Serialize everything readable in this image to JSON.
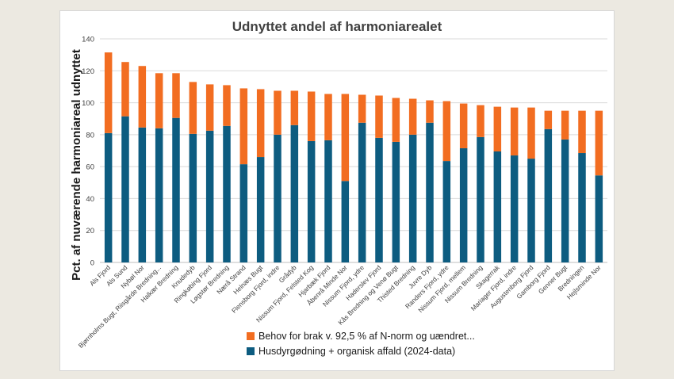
{
  "colors": {
    "top": "#f26d21",
    "bottom": "#0d5c80",
    "grid": "#d9d9d9",
    "axis": "#bfbfbf"
  },
  "chart_data": {
    "type": "bar",
    "stacked": true,
    "title": "Udnyttet andel af harmoniarealet",
    "ylabel": "Pct. af nuværende harmoniareal udnyttet",
    "xlabel": "",
    "ylim": [
      0,
      140
    ],
    "yticks": [
      0,
      20,
      40,
      60,
      80,
      100,
      120,
      140
    ],
    "grid": true,
    "legend_position": "bottom",
    "categories": [
      "Als Fjord",
      "Als Sund",
      "Nybøl Nor",
      "Bjørnholms Bugt, Riisgårde Bredning...",
      "Halkær Bredning",
      "Knudedyb",
      "Ringkøbing Fjord",
      "Løgstør Bredning",
      "Nærå Strand",
      "Helnæs Bugt",
      "Flensborg Fjord, indre",
      "Grådyb",
      "Nissum Fjord, Felsted Kog",
      "Hjarbæk Fjord",
      "Åbenrå Minde Nor",
      "Nissum Fjord, ydre",
      "Haderslev Fjord",
      "Kås Bredning og Venø Bugt",
      "Thisted Bredning",
      "Juvre Dyb",
      "Randers Fjord, ydre",
      "Nissum Fjord, mellem",
      "Nissum Bredning",
      "Skagerrak",
      "Mariager Fjord, indre",
      "Augustenborg Fjord",
      "Gamborg Fjord",
      "Genner Bugt",
      "Bredningen",
      "Hejlsminde Nor"
    ],
    "series": [
      {
        "name": "Husdyrgødning + organisk affald (2024-data)",
        "values": [
          81,
          91.5,
          84.5,
          84,
          90.5,
          80.5,
          82.5,
          85.5,
          61.5,
          66,
          80,
          86,
          76,
          76.5,
          51,
          87.5,
          78,
          75.5,
          80,
          87.5,
          63.5,
          71.5,
          78.5,
          69.5,
          67,
          65,
          83.5,
          77,
          68.5,
          54.5
        ]
      },
      {
        "name": "Behov for brak v. 92,5 % af N-norm og uændret...",
        "values": [
          50.5,
          34,
          38.5,
          34.5,
          28,
          32.5,
          29,
          25.5,
          47.5,
          42.5,
          27.5,
          21.5,
          31,
          29,
          54.5,
          17.5,
          26.5,
          27.5,
          22.5,
          14,
          37.5,
          28,
          20,
          28,
          30,
          32,
          11.5,
          18,
          26.5,
          40.5
        ]
      }
    ]
  }
}
